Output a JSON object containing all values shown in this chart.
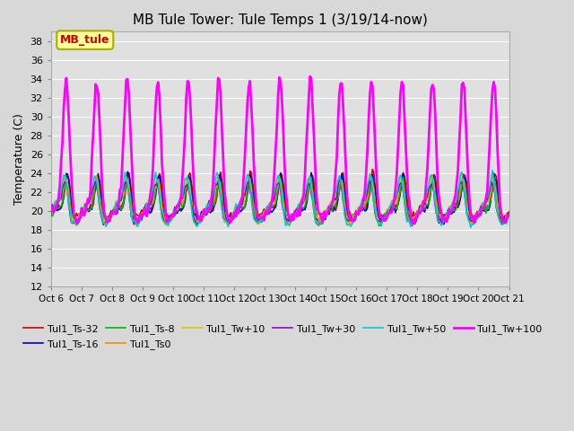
{
  "title": "MB Tule Tower: Tule Temps 1 (3/19/14-now)",
  "ylabel": "Temperature (C)",
  "ylim": [
    12,
    39
  ],
  "yticks": [
    12,
    14,
    16,
    18,
    20,
    22,
    24,
    26,
    28,
    30,
    32,
    34,
    36,
    38
  ],
  "x_labels": [
    "Oct 6",
    "Oct 7",
    "Oct 8",
    "Oct 9",
    "Oct 10",
    "Oct 11",
    "Oct 12",
    "Oct 13",
    "Oct 14",
    "Oct 15",
    "Oct 16",
    "Oct 17",
    "Oct 18",
    "Oct 19",
    "Oct 20",
    "Oct 21"
  ],
  "series_names": [
    "Tul1_Ts-32",
    "Tul1_Ts-16",
    "Tul1_Ts-8",
    "Tul1_Ts0",
    "Tul1_Tw+10",
    "Tul1_Tw+30",
    "Tul1_Tw+50",
    "Tul1_Tw+100"
  ],
  "series_colors": [
    "#cc0000",
    "#0000cc",
    "#00bb00",
    "#ff8800",
    "#cccc00",
    "#9900cc",
    "#00cccc",
    "#ff00ff"
  ],
  "series_lw": [
    1.2,
    1.2,
    1.2,
    1.2,
    1.2,
    1.2,
    1.2,
    2.0
  ],
  "bg_color": "#e0e0e0",
  "grid_color": "#ffffff",
  "legend_box_facecolor": "#ffff99",
  "legend_box_edgecolor": "#aaaa00",
  "legend_box_label": "MB_tule",
  "legend_box_text_color": "#cc0000"
}
